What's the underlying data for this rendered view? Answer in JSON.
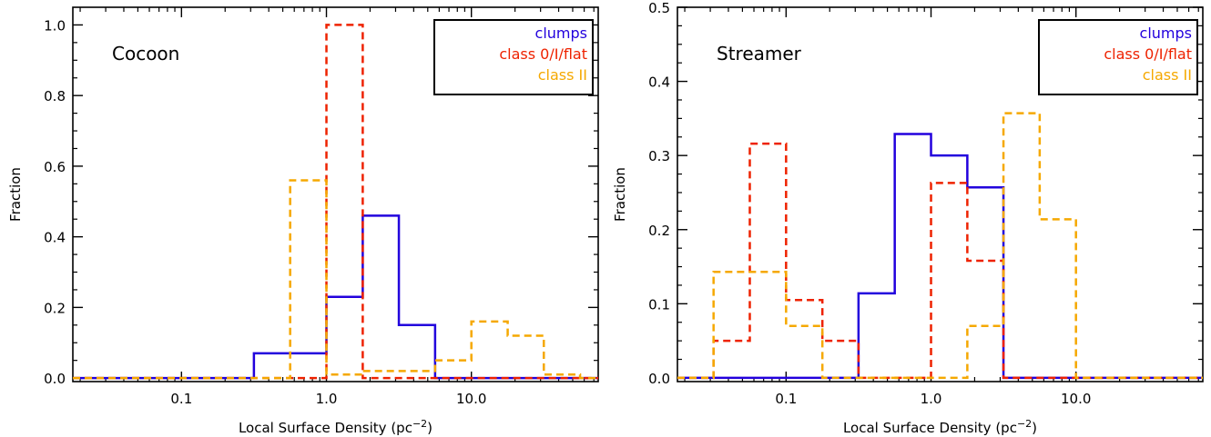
{
  "chart_data": [
    {
      "type": "histogram",
      "title": "Cocoon",
      "xlabel": "Local Surface Density (pc",
      "xlabel_sup": "−2",
      "xlabel_close": ")",
      "ylabel": "Fraction",
      "x_scale": "log",
      "xlim": [
        0.0178,
        75
      ],
      "ylim": [
        -0.01,
        1.05
      ],
      "x_ticks": [
        0.1,
        1.0,
        10.0
      ],
      "x_tick_labels": [
        "0.1",
        "1.0",
        "10.0"
      ],
      "y_ticks": [
        0.0,
        0.2,
        0.4,
        0.6,
        0.8,
        1.0
      ],
      "y_tick_labels": [
        "0.0",
        "0.2",
        "0.4",
        "0.6",
        "0.8",
        "1.0"
      ],
      "legend_position": "top-right",
      "series": [
        {
          "name": "clumps",
          "color": "#2200dd",
          "dash": "solid",
          "edges": [
            0.0178,
            0.316,
            0.562,
            1.0,
            1.78,
            3.16,
            5.62,
            75
          ],
          "values": [
            0.0,
            0.07,
            0.07,
            0.23,
            0.46,
            0.15,
            0.0
          ]
        },
        {
          "name": "class 0/I/flat",
          "color": "#ee2200",
          "dash": "dashed",
          "edges": [
            0.0178,
            1.0,
            1.78,
            75
          ],
          "values": [
            0.0,
            1.0,
            0.0
          ]
        },
        {
          "name": "class II",
          "color": "#f5a800",
          "dash": "dashed",
          "edges": [
            0.0178,
            0.562,
            1.0,
            1.78,
            5.62,
            10.0,
            17.8,
            31.6,
            56.2,
            75
          ],
          "values": [
            0.0,
            0.56,
            0.01,
            0.02,
            0.05,
            0.16,
            0.12,
            0.01,
            0.0
          ]
        }
      ]
    },
    {
      "type": "histogram",
      "title": "Streamer",
      "xlabel": "Local Surface Density (pc",
      "xlabel_sup": "−2",
      "xlabel_close": ")",
      "ylabel": "Fraction",
      "x_scale": "log",
      "xlim": [
        0.0178,
        75
      ],
      "ylim": [
        -0.005,
        0.5
      ],
      "x_ticks": [
        0.1,
        1.0,
        10.0
      ],
      "x_tick_labels": [
        "0.1",
        "1.0",
        "10.0"
      ],
      "y_ticks": [
        0.0,
        0.1,
        0.2,
        0.3,
        0.4,
        0.5
      ],
      "y_tick_labels": [
        "0.0",
        "0.1",
        "0.2",
        "0.3",
        "0.4",
        "0.5"
      ],
      "legend_position": "top-right",
      "series": [
        {
          "name": "clumps",
          "color": "#2200dd",
          "dash": "solid",
          "edges": [
            0.0178,
            0.316,
            0.562,
            1.0,
            1.78,
            3.16,
            75
          ],
          "values": [
            0.0,
            0.114,
            0.329,
            0.3,
            0.257,
            0.0
          ]
        },
        {
          "name": "class 0/I/flat",
          "color": "#ee2200",
          "dash": "dashed",
          "edges": [
            0.0178,
            0.0316,
            0.0562,
            0.1,
            0.178,
            0.316,
            1.0,
            1.78,
            3.16,
            75
          ],
          "values": [
            0.0,
            0.05,
            0.316,
            0.105,
            0.05,
            0.0,
            0.263,
            0.158,
            0.0
          ]
        },
        {
          "name": "class II",
          "color": "#f5a800",
          "dash": "dashed",
          "edges": [
            0.0178,
            0.0316,
            0.1,
            0.178,
            1.78,
            3.16,
            5.62,
            10.0,
            75
          ],
          "values": [
            0.0,
            0.143,
            0.07,
            0.0,
            0.07,
            0.357,
            0.214,
            0.0
          ]
        }
      ]
    }
  ]
}
